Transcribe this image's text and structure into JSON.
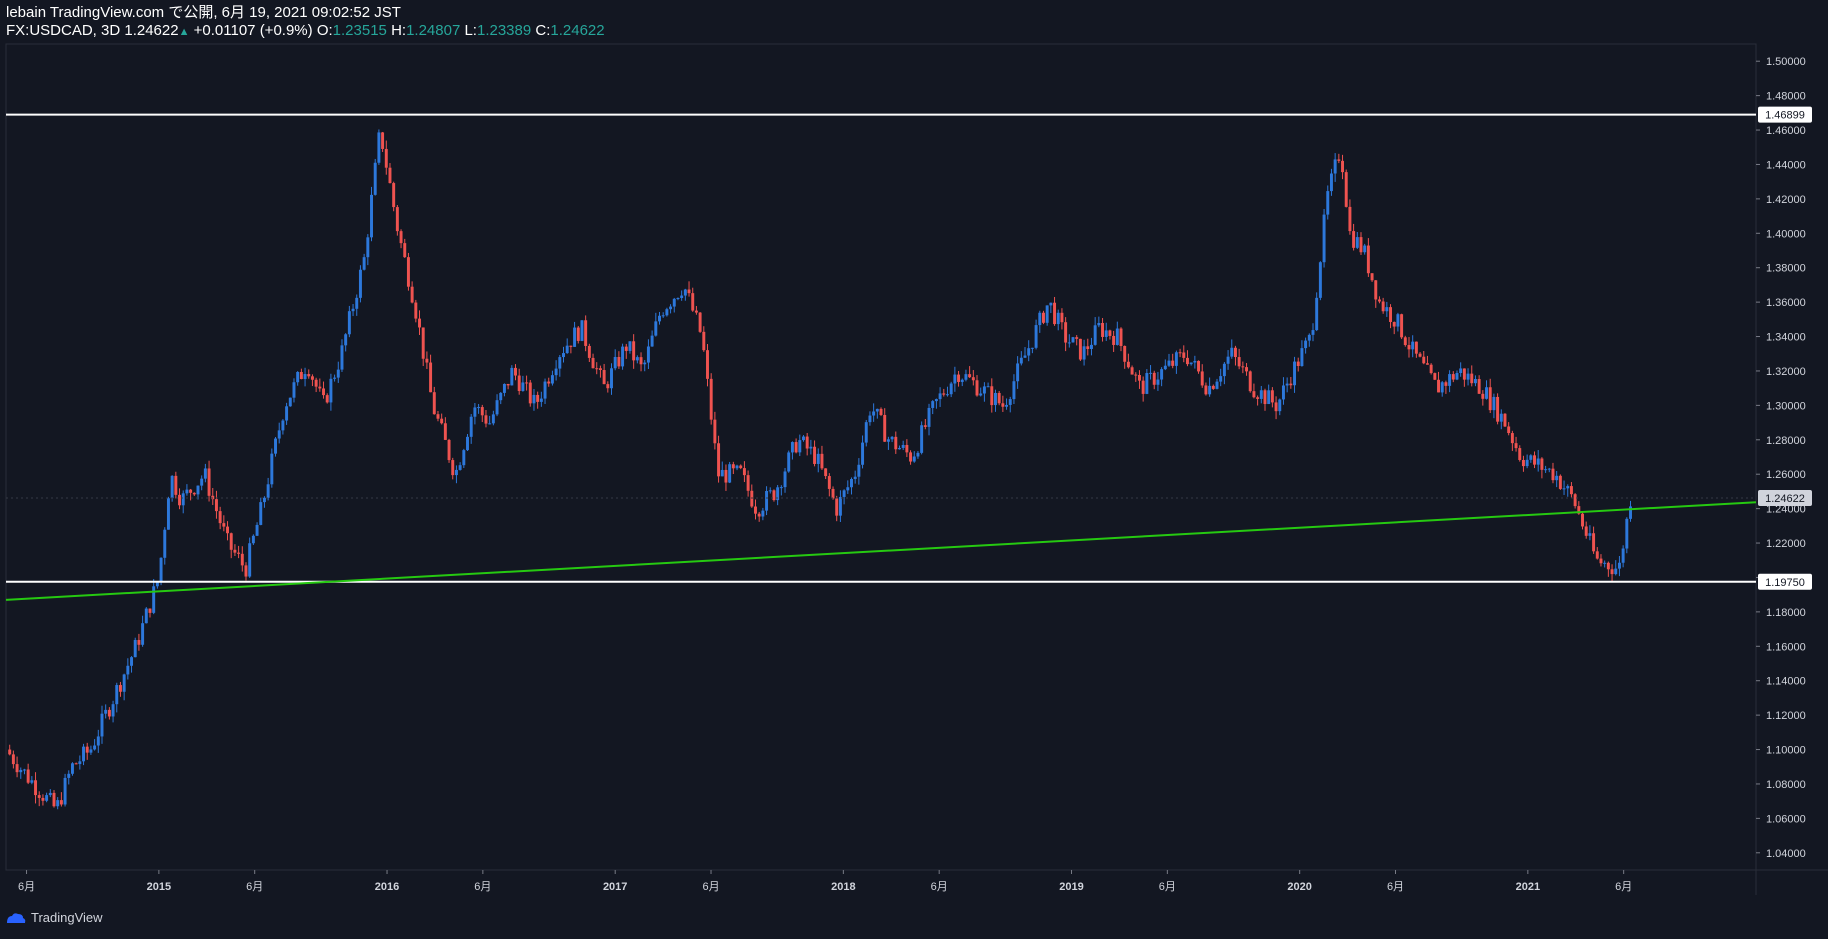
{
  "header": {
    "publisher": "lebain TradingView.com で公開, 6月 19, 2021 09:02:52 JST",
    "symbol": "FX:USDCAD, 3D",
    "price": "1.24622",
    "change": "+0.01107 (+0.9%)",
    "o_label": "O:",
    "o_value": "1.23515",
    "h_label": "H:",
    "h_value": "1.24807",
    "l_label": "L:",
    "l_value": "1.23389",
    "c_label": "C:",
    "c_value": "1.24622"
  },
  "footer": {
    "brand": "TradingView",
    "logo_icon": "tradingview-logo-icon"
  },
  "colors": {
    "background": "#131722",
    "up": "#2d78db",
    "down": "#ef5350",
    "trendline": "#26c911",
    "level": "#ffffff",
    "axis_text": "#d1d4dc"
  },
  "chart_data": {
    "type": "line",
    "style": "candlestick",
    "symbol": "FX:USDCAD",
    "timeframe": "3D",
    "ylim": [
      1.03,
      1.51
    ],
    "xlim": [
      2014.33,
      2022.0
    ],
    "yticks": [
      1.04,
      1.06,
      1.08,
      1.1,
      1.12,
      1.14,
      1.16,
      1.18,
      1.2,
      1.22,
      1.24,
      1.26,
      1.28,
      1.3,
      1.32,
      1.34,
      1.36,
      1.38,
      1.4,
      1.42,
      1.44,
      1.46,
      1.48,
      1.5
    ],
    "xticks": [
      {
        "t": 2014.42,
        "label": "6月",
        "bold": false
      },
      {
        "t": 2015.0,
        "label": "2015",
        "bold": true
      },
      {
        "t": 2015.42,
        "label": "6月",
        "bold": false
      },
      {
        "t": 2016.0,
        "label": "2016",
        "bold": true
      },
      {
        "t": 2016.42,
        "label": "6月",
        "bold": false
      },
      {
        "t": 2017.0,
        "label": "2017",
        "bold": true
      },
      {
        "t": 2017.42,
        "label": "6月",
        "bold": false
      },
      {
        "t": 2018.0,
        "label": "2018",
        "bold": true
      },
      {
        "t": 2018.42,
        "label": "6月",
        "bold": false
      },
      {
        "t": 2019.0,
        "label": "2019",
        "bold": true
      },
      {
        "t": 2019.42,
        "label": "6月",
        "bold": false
      },
      {
        "t": 2020.0,
        "label": "2020",
        "bold": true
      },
      {
        "t": 2020.42,
        "label": "6月",
        "bold": false
      },
      {
        "t": 2021.0,
        "label": "2021",
        "bold": true
      },
      {
        "t": 2021.42,
        "label": "6月",
        "bold": false
      }
    ],
    "series": [
      {
        "t": [
          2014.33,
          2014.42,
          2014.55,
          2014.62,
          2014.7,
          2014.8,
          2014.9,
          2015.0,
          2015.05,
          2015.1,
          2015.2,
          2015.3,
          2015.38,
          2015.45,
          2015.55,
          2015.65,
          2015.72,
          2015.8,
          2015.9,
          2015.97,
          2016.05,
          2016.12,
          2016.2,
          2016.3,
          2016.38,
          2016.45,
          2016.55,
          2016.65,
          2016.75,
          2016.85,
          2016.95,
          2017.05,
          2017.12,
          2017.2,
          2017.3,
          2017.38,
          2017.45,
          2017.55,
          2017.62,
          2017.7,
          2017.8,
          2017.88,
          2017.97,
          2018.05,
          2018.12,
          2018.2,
          2018.3,
          2018.4,
          2018.5,
          2018.6,
          2018.7,
          2018.8,
          2018.9,
          2018.97,
          2019.05,
          2019.12,
          2019.2,
          2019.3,
          2019.4,
          2019.5,
          2019.6,
          2019.7,
          2019.8,
          2019.9,
          2019.97,
          2020.05,
          2020.12,
          2020.18,
          2020.22,
          2020.28,
          2020.35,
          2020.42,
          2020.5,
          2020.6,
          2020.7,
          2020.8,
          2020.9,
          2020.97,
          2021.05,
          2021.12,
          2021.2,
          2021.3,
          2021.4,
          2021.45
        ],
        "values": [
          1.1,
          1.085,
          1.065,
          1.09,
          1.1,
          1.13,
          1.16,
          1.2,
          1.26,
          1.245,
          1.26,
          1.22,
          1.205,
          1.24,
          1.3,
          1.325,
          1.3,
          1.33,
          1.385,
          1.46,
          1.4,
          1.36,
          1.3,
          1.26,
          1.3,
          1.29,
          1.32,
          1.3,
          1.33,
          1.345,
          1.31,
          1.335,
          1.32,
          1.355,
          1.37,
          1.34,
          1.26,
          1.26,
          1.24,
          1.25,
          1.28,
          1.27,
          1.24,
          1.26,
          1.3,
          1.28,
          1.27,
          1.3,
          1.32,
          1.31,
          1.3,
          1.33,
          1.36,
          1.34,
          1.33,
          1.345,
          1.34,
          1.31,
          1.32,
          1.33,
          1.31,
          1.33,
          1.31,
          1.3,
          1.32,
          1.34,
          1.42,
          1.45,
          1.4,
          1.39,
          1.36,
          1.35,
          1.33,
          1.31,
          1.32,
          1.31,
          1.29,
          1.27,
          1.265,
          1.26,
          1.245,
          1.21,
          1.205,
          1.2462
        ]
      }
    ],
    "annotations": {
      "resistance_label": "1.46899",
      "support_label": "1.19750",
      "last_price_label": "1.24622",
      "trendline": {
        "from": {
          "t": 2014.33,
          "v": 1.187
        },
        "to": {
          "t": 2022.0,
          "v": 1.2437
        }
      },
      "horizontal_levels": [
        1.46899,
        1.1975
      ]
    }
  }
}
